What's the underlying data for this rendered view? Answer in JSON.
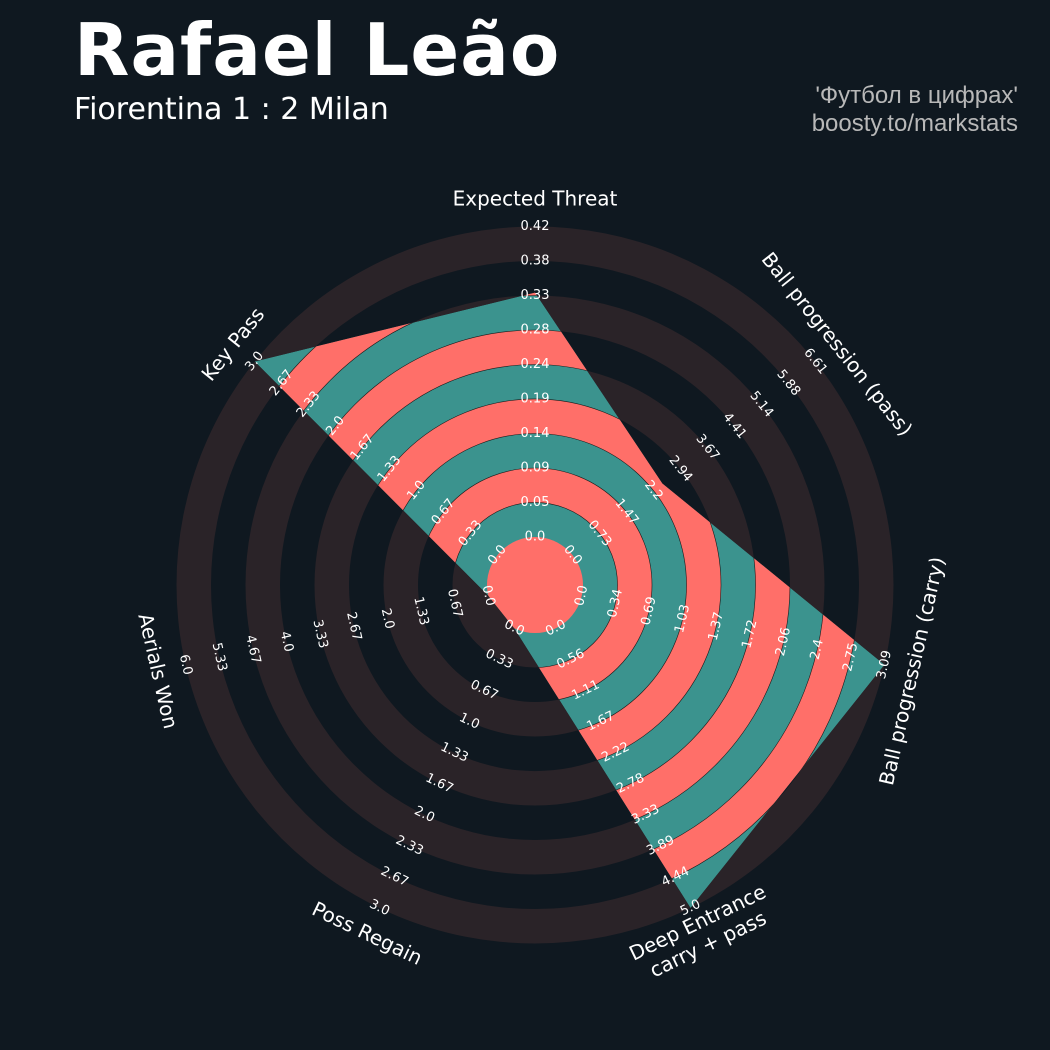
{
  "header": {
    "title": "Rafael Leão",
    "subtitle": "Fiorentina 1 : 2 Milan",
    "credit_line1": "'Футбол в цифрах'",
    "credit_line2": "boosty.to/markstats"
  },
  "colors": {
    "background": "#0f1820",
    "ring_band": "#2a2328",
    "fill_teal": "#3b938e",
    "fill_coral": "#ff6f69"
  },
  "chart_data": {
    "type": "radar",
    "grid": false,
    "parameters": [
      {
        "label": "Expected Threat",
        "ticks": [
          "0.0",
          "0.05",
          "0.09",
          "0.14",
          "0.19",
          "0.24",
          "0.28",
          "0.33",
          "0.38",
          "0.42"
        ],
        "value_fraction": 0.787
      },
      {
        "label": "Ball progression (pass)",
        "ticks": [
          "0.0",
          "0.73",
          "1.47",
          "2.2",
          "2.94",
          "3.67",
          "4.41",
          "5.14",
          "5.88",
          "6.61"
        ],
        "value_fraction": 0.37
      },
      {
        "label": "Ball progression (carry)",
        "ticks": [
          "0.0",
          "0.34",
          "0.69",
          "1.03",
          "1.37",
          "1.72",
          "2.06",
          "2.4",
          "2.75",
          "3.09"
        ],
        "value_fraction": 1.0
      },
      {
        "label": "Deep Entrance\ncarry + pass",
        "ticks": [
          "0.0",
          "0.56",
          "1.11",
          "1.67",
          "2.22",
          "2.78",
          "3.33",
          "3.89",
          "4.44",
          "5.0"
        ],
        "value_fraction": 1.0
      },
      {
        "label": "Poss Regain",
        "ticks": [
          "0.0",
          "0.33",
          "0.67",
          "1.0",
          "1.33",
          "1.67",
          "2.0",
          "2.33",
          "2.67",
          "3.0"
        ],
        "value_fraction": 0.0
      },
      {
        "label": "Aerials Won",
        "ticks": [
          "0.0",
          "0.67",
          "1.33",
          "2.0",
          "2.67",
          "3.33",
          "4.0",
          "4.67",
          "5.33",
          "6.0"
        ],
        "value_fraction": 0.0
      },
      {
        "label": "Key Pass",
        "ticks": [
          "0.0",
          "0.33",
          "0.67",
          "1.0",
          "1.33",
          "1.67",
          "2.0",
          "2.33",
          "2.67",
          "3.0"
        ],
        "value_fraction": 1.0
      }
    ]
  }
}
